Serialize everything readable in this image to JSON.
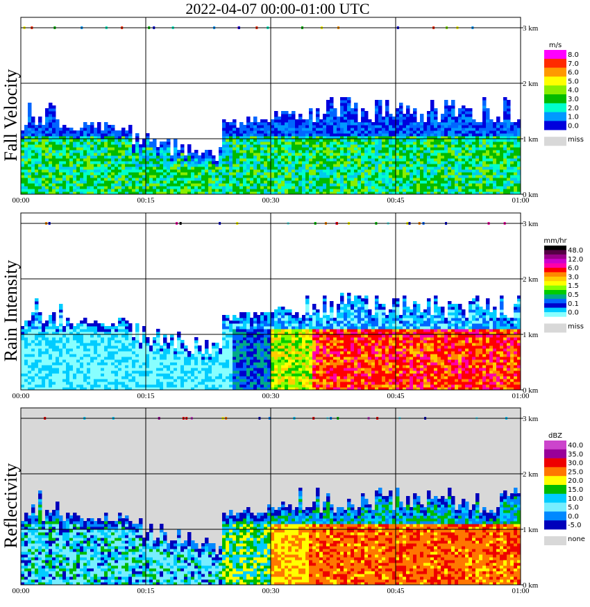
{
  "title": "2022-04-07   00:00-01:00 UTC",
  "xticks": [
    "00:00",
    "00:15",
    "00:30",
    "00:45",
    "01:00"
  ],
  "yticks": [
    "0 km",
    "1 km",
    "2 km",
    "3 km"
  ],
  "chart_data": [
    {
      "type": "heatmap",
      "ylabel": "Fall Velocity",
      "xlabel": "",
      "x_range": [
        "00:00",
        "01:00"
      ],
      "y_range_km": [
        0,
        3.2
      ],
      "grid": true,
      "legend": {
        "unit": "m/s",
        "levels": [
          "8.0",
          "7.0",
          "6.0",
          "5.0",
          "4.0",
          "3.0",
          "2.0",
          "1.0",
          "0.0"
        ],
        "colors": [
          "#ff00ff",
          "#ff2a00",
          "#ff9900",
          "#ffff00",
          "#88ee00",
          "#00bb00",
          "#00ffcc",
          "#0099ff",
          "#0000dd"
        ],
        "miss_label": "miss",
        "miss_color": "#d8d8d8"
      }
    },
    {
      "type": "heatmap",
      "ylabel": "Rain Intensity",
      "xlabel": "",
      "x_range": [
        "00:00",
        "01:00"
      ],
      "y_range_km": [
        0,
        3.2
      ],
      "grid": true,
      "legend": {
        "unit": "mm/hr",
        "levels": [
          "48.0",
          "12.0",
          "6.0",
          "3.0",
          "1.5",
          "0.5",
          "0.1",
          "0.0"
        ],
        "colors": [
          "#000000",
          "#550044",
          "#990088",
          "#cc00cc",
          "#ff00aa",
          "#ff0000",
          "#ff8800",
          "#ffcc00",
          "#ffff00",
          "#88ff00",
          "#00cc00",
          "#00aa88",
          "#0066ff",
          "#0000cc",
          "#00ccff",
          "#88ffff"
        ],
        "miss_label": "miss",
        "miss_color": "#d8d8d8"
      }
    },
    {
      "type": "heatmap",
      "ylabel": "Reflectivity",
      "xlabel": "",
      "x_range": [
        "00:00",
        "01:00"
      ],
      "y_range_km": [
        0,
        3.2
      ],
      "grid": true,
      "legend": {
        "unit": "dBZ",
        "levels": [
          "40.0",
          "35.0",
          "30.0",
          "25.0",
          "20.0",
          "15.0",
          "10.0",
          "5.0",
          "0.0",
          "-5.0"
        ],
        "colors": [
          "#cc44cc",
          "#990099",
          "#ee0000",
          "#ff7700",
          "#ffff00",
          "#00bb00",
          "#00ccff",
          "#77eeff",
          "#0088ff",
          "#0000bb"
        ],
        "miss_label": "none",
        "miss_color": "#d8d8d8"
      }
    }
  ]
}
